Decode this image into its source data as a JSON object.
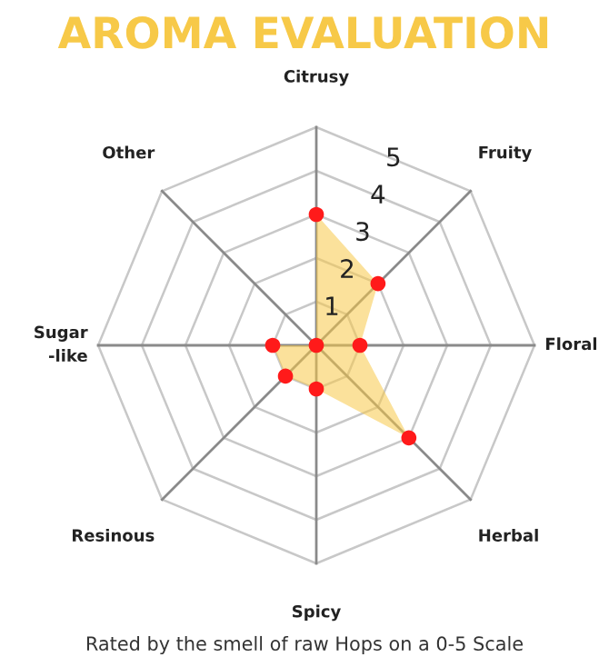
{
  "chart_data": {
    "type": "radar",
    "title": "AROMA EVALUATION",
    "categories": [
      "Citrusy",
      "Fruity",
      "Floral",
      "Herbal",
      "Spicy",
      "Resinous",
      "Sugar\n-like",
      "Other"
    ],
    "series": [
      {
        "color": "#f7c948",
        "colors": [
          "#ff1a1a",
          "#ff1a1a",
          "#ff1a1a",
          "#ff1a1a",
          "#ff1a1a",
          "#ff1a1a",
          "#ff1a1a",
          "#ff1a1a"
        ],
        "values": [
          3,
          2,
          1,
          3,
          1,
          1,
          1,
          0
        ]
      }
    ],
    "marker": "circle",
    "ylim": [
      0,
      5
    ],
    "yticks": [
      1,
      2,
      3,
      4,
      5
    ],
    "grid": true,
    "annotations": [
      "Rated by the smell of raw Hops on a 0-5 Scale"
    ]
  }
}
